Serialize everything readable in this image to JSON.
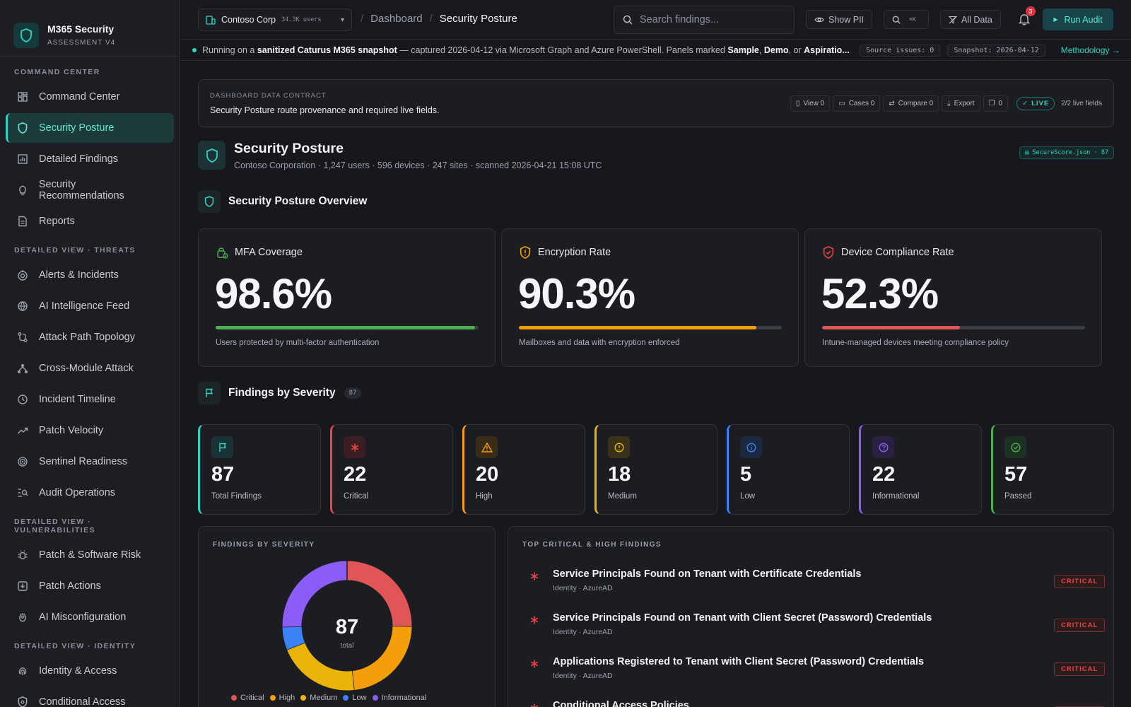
{
  "brand": {
    "title": "M365 Security",
    "subtitle": "ASSESSMENT V4"
  },
  "sidebar": {
    "sections": [
      {
        "label": "COMMAND CENTER",
        "items": [
          {
            "label": "Command Center",
            "icon": "grid-icon",
            "active": false
          },
          {
            "label": "Security Posture",
            "icon": "shield-icon",
            "active": true
          },
          {
            "label": "Detailed Findings",
            "icon": "bar-chart-icon",
            "active": false
          },
          {
            "label": "Security Recommendations",
            "icon": "lightbulb-icon",
            "active": false
          },
          {
            "label": "Reports",
            "icon": "document-icon",
            "active": false
          }
        ]
      },
      {
        "label": "DETAILED VIEW · THREATS",
        "items": [
          {
            "label": "Alerts & Incidents",
            "icon": "target-icon",
            "active": false
          },
          {
            "label": "AI Intelligence Feed",
            "icon": "globe-icon",
            "active": false
          },
          {
            "label": "Attack Path Topology",
            "icon": "route-icon",
            "active": false
          },
          {
            "label": "Cross-Module Attack",
            "icon": "network-icon",
            "active": false
          },
          {
            "label": "Incident Timeline",
            "icon": "clock-icon",
            "active": false
          },
          {
            "label": "Patch Velocity",
            "icon": "trending-up-icon",
            "active": false
          },
          {
            "label": "Sentinel Readiness",
            "icon": "radar-icon",
            "active": false
          },
          {
            "label": "Audit Operations",
            "icon": "search-list-icon",
            "active": false
          }
        ]
      },
      {
        "label": "DETAILED VIEW · VULNERABILITIES",
        "items": [
          {
            "label": "Patch & Software Risk",
            "icon": "bug-icon",
            "active": false
          },
          {
            "label": "Patch Actions",
            "icon": "download-box-icon",
            "active": false
          },
          {
            "label": "AI Misconfiguration",
            "icon": "brain-icon",
            "active": false
          }
        ]
      },
      {
        "label": "DETAILED VIEW · IDENTITY",
        "items": [
          {
            "label": "Identity & Access",
            "icon": "fingerprint-icon",
            "active": false
          },
          {
            "label": "Conditional Access",
            "icon": "shield-lock-icon",
            "active": false
          }
        ]
      }
    ]
  },
  "topbar": {
    "tenant": "Contoso Corp",
    "tenant_users": "34.3K users",
    "breadcrumb_root": "Dashboard",
    "breadcrumb_current": "Security Posture",
    "search_placeholder": "Search findings...",
    "show_pii": "Show PII",
    "shortcut": "⌘K",
    "all_data": "All Data",
    "notifications": "3",
    "run_audit": "Run Audit"
  },
  "strip": {
    "pre": "Running on a ",
    "bold1": "sanitized Caturus M365 snapshot",
    "mid": " — captured 2026-04-12 via Microsoft Graph and Azure PowerShell. Panels marked ",
    "bold2": "Sample",
    "c1": ", ",
    "bold3": "Demo",
    "c2": ", or ",
    "bold4": "Aspiratio...",
    "source_issues": "Source issues: 0",
    "snapshot": "Snapshot: 2026-04-12",
    "methodology": "Methodology →"
  },
  "contract": {
    "label": "DASHBOARD DATA CONTRACT",
    "text": "Security Posture route provenance and required live fields.",
    "view": "View 0",
    "cases": "Cases 0",
    "compare": "Compare 0",
    "export": "Export",
    "copies": "0",
    "live": "LIVE",
    "live_fields": "2/2 live fields"
  },
  "page": {
    "title": "Security Posture",
    "subtitle": "Contoso Corporation · 1,247 users · 596 devices · 247 sites · scanned 2026-04-21 15:08 UTC",
    "source_file": "SecureScore.json · 87"
  },
  "overview": {
    "title": "Security Posture Overview",
    "kpis": [
      {
        "title": "MFA Coverage",
        "value": "98.6%",
        "pct": 98.6,
        "color": "#4caf50",
        "desc": "Users protected by multi-factor authentication",
        "icon": "lock-user-icon"
      },
      {
        "title": "Encryption Rate",
        "value": "90.3%",
        "pct": 90.3,
        "color": "#f59e0b",
        "desc": "Mailboxes and data with encryption enforced",
        "icon": "shield-alert-icon"
      },
      {
        "title": "Device Compliance Rate",
        "value": "52.3%",
        "pct": 52.3,
        "color": "#e05555",
        "desc": "Intune-managed devices meeting compliance policy",
        "icon": "shield-check-icon"
      }
    ]
  },
  "severity": {
    "title": "Findings by Severity",
    "count": "87",
    "cards": [
      {
        "value": "87",
        "label": "Total Findings",
        "color": "#2dd4bf",
        "bg": "#183236",
        "icon": "flag-icon"
      },
      {
        "value": "22",
        "label": "Critical",
        "color": "#ef4444",
        "bg": "#3a1f22",
        "icon": "asterisk-icon"
      },
      {
        "value": "20",
        "label": "High",
        "color": "#f59e0b",
        "bg": "#3a2d17",
        "icon": "warning-icon"
      },
      {
        "value": "18",
        "label": "Medium",
        "color": "#eab308",
        "bg": "#38321a",
        "icon": "alert-circle-icon"
      },
      {
        "value": "5",
        "label": "Low",
        "color": "#3b82f6",
        "bg": "#1c2740",
        "icon": "info-icon"
      },
      {
        "value": "22",
        "label": "Informational",
        "color": "#8b5cf6",
        "bg": "#2a2140",
        "icon": "question-icon"
      },
      {
        "value": "57",
        "label": "Passed",
        "color": "#4caf50",
        "bg": "#1d3122",
        "icon": "check-circle-icon"
      }
    ]
  },
  "donut_panel": {
    "title": "FINDINGS BY SEVERITY",
    "center_value": "87",
    "center_label": "total"
  },
  "chart_data": {
    "type": "pie",
    "title": "FINDINGS BY SEVERITY",
    "categories": [
      "Critical",
      "High",
      "Medium",
      "Low",
      "Informational"
    ],
    "values": [
      22,
      20,
      18,
      5,
      22
    ],
    "colors": [
      "#e05555",
      "#f59e0b",
      "#eab308",
      "#3b82f6",
      "#8b5cf6"
    ],
    "legend": "bottom"
  },
  "top_findings": {
    "title": "TOP CRITICAL & HIGH FINDINGS",
    "items": [
      {
        "title": "Service Principals Found on Tenant with Certificate Credentials",
        "sub": "Identity · AzureAD",
        "tag": "CRITICAL"
      },
      {
        "title": "Service Principals Found on Tenant with Client Secret (Password) Credentials",
        "sub": "Identity · AzureAD",
        "tag": "CRITICAL"
      },
      {
        "title": "Applications Registered to Tenant with Client Secret (Password) Credentials",
        "sub": "Identity · AzureAD",
        "tag": "CRITICAL"
      },
      {
        "title": "Conditional Access Policies",
        "sub": "",
        "tag": "CRITICAL"
      }
    ]
  }
}
